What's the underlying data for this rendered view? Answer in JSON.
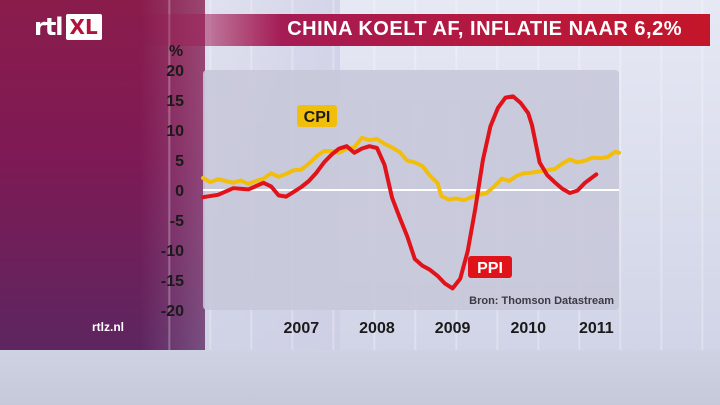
{
  "header": {
    "title": "CHINA KOELT AF, INFLATIE NAAR 6,2%",
    "logo_rtl": "rtl",
    "logo_xl": "XL"
  },
  "footer": {
    "site": "rtlz.nl"
  },
  "colors": {
    "ppi": "#e1131a",
    "cpi": "#f2be0c",
    "plot_bg": "#c8c8da",
    "zero_line": "#ffffff",
    "title_bar": "#c4162a"
  },
  "chart_data": {
    "type": "line",
    "title": "CHINA KOELT AF, INFLATIE NAAR 6,2%",
    "ylabel": "%",
    "xlabel": "",
    "ylim": [
      -20,
      20
    ],
    "xlim": [
      2006.0,
      2011.5
    ],
    "yticks": [
      20,
      15,
      10,
      5,
      0,
      -5,
      -10,
      -15,
      -20
    ],
    "xticks": [
      {
        "label": "2007",
        "at": 2007.3
      },
      {
        "label": "2008",
        "at": 2008.3
      },
      {
        "label": "2009",
        "at": 2009.3
      },
      {
        "label": "2010",
        "at": 2010.3
      },
      {
        "label": "2011",
        "at": 2011.2
      }
    ],
    "source": "Bron: Thomson Datastream",
    "series": [
      {
        "name": "CPI",
        "points": [
          [
            2006.0,
            2.0
          ],
          [
            2006.1,
            1.3
          ],
          [
            2006.2,
            1.8
          ],
          [
            2006.3,
            1.5
          ],
          [
            2006.4,
            1.2
          ],
          [
            2006.5,
            1.6
          ],
          [
            2006.6,
            1.0
          ],
          [
            2006.7,
            1.5
          ],
          [
            2006.8,
            1.9
          ],
          [
            2006.9,
            2.8
          ],
          [
            2007.0,
            2.2
          ],
          [
            2007.1,
            2.7
          ],
          [
            2007.2,
            3.3
          ],
          [
            2007.3,
            3.4
          ],
          [
            2007.4,
            4.4
          ],
          [
            2007.5,
            5.6
          ],
          [
            2007.6,
            6.5
          ],
          [
            2007.7,
            6.5
          ],
          [
            2007.8,
            6.2
          ],
          [
            2007.9,
            6.9
          ],
          [
            2008.0,
            7.1
          ],
          [
            2008.1,
            8.7
          ],
          [
            2008.2,
            8.3
          ],
          [
            2008.3,
            8.5
          ],
          [
            2008.4,
            7.7
          ],
          [
            2008.5,
            7.1
          ],
          [
            2008.6,
            6.3
          ],
          [
            2008.7,
            4.9
          ],
          [
            2008.8,
            4.6
          ],
          [
            2008.9,
            4.0
          ],
          [
            2009.0,
            2.4
          ],
          [
            2009.1,
            1.2
          ],
          [
            2009.15,
            -1.0
          ],
          [
            2009.25,
            -1.6
          ],
          [
            2009.35,
            -1.4
          ],
          [
            2009.45,
            -1.7
          ],
          [
            2009.55,
            -1.2
          ],
          [
            2009.65,
            -0.8
          ],
          [
            2009.75,
            -0.5
          ],
          [
            2009.85,
            0.6
          ],
          [
            2009.95,
            1.9
          ],
          [
            2010.05,
            1.5
          ],
          [
            2010.15,
            2.4
          ],
          [
            2010.25,
            2.8
          ],
          [
            2010.35,
            2.9
          ],
          [
            2010.45,
            3.1
          ],
          [
            2010.55,
            3.3
          ],
          [
            2010.65,
            3.5
          ],
          [
            2010.75,
            4.4
          ],
          [
            2010.85,
            5.1
          ],
          [
            2010.95,
            4.6
          ],
          [
            2011.05,
            4.9
          ],
          [
            2011.15,
            5.4
          ],
          [
            2011.25,
            5.3
          ],
          [
            2011.35,
            5.5
          ],
          [
            2011.45,
            6.4
          ],
          [
            2011.5,
            6.2
          ]
        ]
      },
      {
        "name": "PPI",
        "points": [
          [
            2006.0,
            -1.2
          ],
          [
            2006.2,
            -0.8
          ],
          [
            2006.4,
            0.3
          ],
          [
            2006.6,
            0.1
          ],
          [
            2006.8,
            1.2
          ],
          [
            2006.9,
            0.6
          ],
          [
            2007.0,
            -0.9
          ],
          [
            2007.1,
            -1.1
          ],
          [
            2007.2,
            -0.3
          ],
          [
            2007.3,
            0.5
          ],
          [
            2007.4,
            1.5
          ],
          [
            2007.5,
            2.9
          ],
          [
            2007.6,
            4.6
          ],
          [
            2007.7,
            5.9
          ],
          [
            2007.8,
            6.9
          ],
          [
            2007.9,
            7.3
          ],
          [
            2008.0,
            6.2
          ],
          [
            2008.1,
            6.9
          ],
          [
            2008.2,
            7.3
          ],
          [
            2008.3,
            7.0
          ],
          [
            2008.4,
            4.2
          ],
          [
            2008.5,
            -1.3
          ],
          [
            2008.6,
            -4.6
          ],
          [
            2008.7,
            -7.7
          ],
          [
            2008.8,
            -11.5
          ],
          [
            2008.9,
            -12.6
          ],
          [
            2009.0,
            -13.3
          ],
          [
            2009.1,
            -14.3
          ],
          [
            2009.2,
            -15.6
          ],
          [
            2009.3,
            -16.4
          ],
          [
            2009.4,
            -14.8
          ],
          [
            2009.5,
            -10.2
          ],
          [
            2009.6,
            -3.1
          ],
          [
            2009.7,
            5.0
          ],
          [
            2009.8,
            10.6
          ],
          [
            2009.9,
            13.7
          ],
          [
            2010.0,
            15.4
          ],
          [
            2010.1,
            15.6
          ],
          [
            2010.2,
            14.5
          ],
          [
            2010.3,
            12.8
          ],
          [
            2010.35,
            10.8
          ],
          [
            2010.45,
            4.6
          ],
          [
            2010.55,
            2.5
          ],
          [
            2010.65,
            1.3
          ],
          [
            2010.75,
            0.2
          ],
          [
            2010.85,
            -0.5
          ],
          [
            2010.95,
            -0.1
          ],
          [
            2011.05,
            1.2
          ],
          [
            2011.2,
            2.6
          ]
        ]
      }
    ],
    "labels": [
      {
        "text": "CPI",
        "series": "CPI"
      },
      {
        "text": "PPI",
        "series": "PPI"
      }
    ]
  }
}
